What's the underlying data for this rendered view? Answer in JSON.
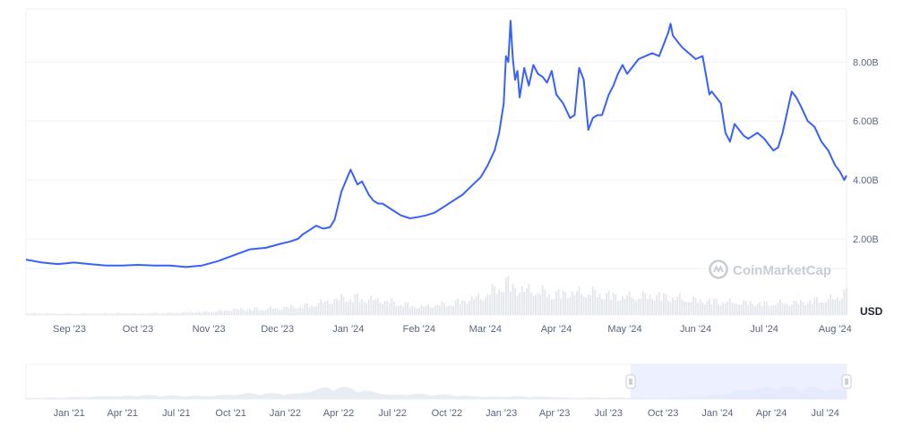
{
  "colors": {
    "line": "#3861fb",
    "grid": "#eff2f5",
    "volume": "#e3e6eb",
    "navigator_fill": "#e8ecf3",
    "navigator_selection": "#e6ebff",
    "watermark": "#c9ced6"
  },
  "watermark": {
    "text": "CoinMarketCap",
    "icon": "coinmarketcap-logo-icon"
  },
  "chart_data": {
    "type": "line",
    "title": "",
    "ylabel": "USD",
    "y_unit": "USD",
    "ylim": [
      1.0,
      9.8
    ],
    "y_tick_values": [
      2,
      4,
      6,
      8
    ],
    "y_tick_labels": [
      "2.00B",
      "4.00B",
      "6.00B",
      "8.00B"
    ],
    "x_tick_labels": [
      "Sep '23",
      "Oct '23",
      "Nov '23",
      "Dec '23",
      "Jan '24",
      "Feb '24",
      "Mar '24",
      "Apr '24",
      "May '24",
      "Jun '24",
      "Jul '24",
      "Aug '24"
    ],
    "x_tick_dates": [
      "2023-09-01",
      "2023-10-01",
      "2023-11-01",
      "2023-12-01",
      "2024-01-01",
      "2024-02-01",
      "2024-03-01",
      "2024-04-01",
      "2024-05-01",
      "2024-06-01",
      "2024-07-01",
      "2024-08-01"
    ],
    "grid": true,
    "legend": "none",
    "series": [
      {
        "x": [
          "2023-08-13",
          "2023-08-20",
          "2023-08-27",
          "2023-09-03",
          "2023-09-10",
          "2023-09-17",
          "2023-09-24",
          "2023-10-01",
          "2023-10-08",
          "2023-10-15",
          "2023-10-22",
          "2023-10-29",
          "2023-11-05",
          "2023-11-12",
          "2023-11-19",
          "2023-11-26",
          "2023-12-03",
          "2023-12-06",
          "2023-12-10",
          "2023-12-12",
          "2023-12-15",
          "2023-12-18",
          "2023-12-21",
          "2023-12-24",
          "2023-12-26",
          "2023-12-29",
          "2024-01-02",
          "2024-01-05",
          "2024-01-07",
          "2024-01-10",
          "2024-01-12",
          "2024-01-14",
          "2024-01-16",
          "2024-01-20",
          "2024-01-24",
          "2024-01-28",
          "2024-02-01",
          "2024-02-04",
          "2024-02-08",
          "2024-02-12",
          "2024-02-16",
          "2024-02-20",
          "2024-02-24",
          "2024-02-28",
          "2024-03-02",
          "2024-03-05",
          "2024-03-07",
          "2024-03-09",
          "2024-03-10",
          "2024-03-11",
          "2024-03-12",
          "2024-03-13",
          "2024-03-14",
          "2024-03-15",
          "2024-03-16",
          "2024-03-18",
          "2024-03-20",
          "2024-03-22",
          "2024-03-24",
          "2024-03-26",
          "2024-03-28",
          "2024-03-30",
          "2024-04-01",
          "2024-04-04",
          "2024-04-07",
          "2024-04-09",
          "2024-04-11",
          "2024-04-13",
          "2024-04-15",
          "2024-04-17",
          "2024-04-19",
          "2024-04-21",
          "2024-04-24",
          "2024-04-26",
          "2024-04-28",
          "2024-04-30",
          "2024-05-02",
          "2024-05-04",
          "2024-05-07",
          "2024-05-10",
          "2024-05-13",
          "2024-05-16",
          "2024-05-18",
          "2024-05-20",
          "2024-05-21",
          "2024-05-22",
          "2024-05-24",
          "2024-05-26",
          "2024-05-29",
          "2024-06-01",
          "2024-06-04",
          "2024-06-07",
          "2024-06-08",
          "2024-06-10",
          "2024-06-12",
          "2024-06-14",
          "2024-06-16",
          "2024-06-18",
          "2024-06-20",
          "2024-06-22",
          "2024-06-24",
          "2024-06-26",
          "2024-06-28",
          "2024-07-01",
          "2024-07-03",
          "2024-07-05",
          "2024-07-07",
          "2024-07-09",
          "2024-07-11",
          "2024-07-13",
          "2024-07-15",
          "2024-07-17",
          "2024-07-20",
          "2024-07-23",
          "2024-07-26",
          "2024-07-29",
          "2024-08-01",
          "2024-08-03",
          "2024-08-05",
          "2024-08-06"
        ],
        "y": [
          1.3,
          1.2,
          1.15,
          1.2,
          1.15,
          1.1,
          1.1,
          1.12,
          1.1,
          1.1,
          1.05,
          1.1,
          1.25,
          1.45,
          1.65,
          1.7,
          1.85,
          1.9,
          2.0,
          2.15,
          2.3,
          2.45,
          2.35,
          2.4,
          2.65,
          3.6,
          4.35,
          3.85,
          3.95,
          3.5,
          3.3,
          3.2,
          3.2,
          3.0,
          2.8,
          2.7,
          2.75,
          2.8,
          2.9,
          3.1,
          3.3,
          3.5,
          3.8,
          4.1,
          4.5,
          5.0,
          5.6,
          6.6,
          8.2,
          8.0,
          9.4,
          8.1,
          7.4,
          7.7,
          6.8,
          7.8,
          7.2,
          7.9,
          7.6,
          7.5,
          7.3,
          7.7,
          6.9,
          6.6,
          6.1,
          6.2,
          7.8,
          7.4,
          5.7,
          6.1,
          6.2,
          6.2,
          6.9,
          7.2,
          7.6,
          7.9,
          7.6,
          7.8,
          8.1,
          8.2,
          8.3,
          8.2,
          8.6,
          9.0,
          9.3,
          8.9,
          8.7,
          8.5,
          8.3,
          8.1,
          8.2,
          6.9,
          7.0,
          6.8,
          6.6,
          5.6,
          5.3,
          5.9,
          5.7,
          5.5,
          5.4,
          5.5,
          5.6,
          5.4,
          5.2,
          5.0,
          5.1,
          5.6,
          6.3,
          7.0,
          6.8,
          6.5,
          6.0,
          5.8,
          5.3,
          5.0,
          4.5,
          4.3,
          4.0,
          4.15
        ]
      }
    ],
    "volume": {
      "note": "relative trading volume bars",
      "x": [
        "2023-08-15",
        "2023-09-01",
        "2023-09-15",
        "2023-10-01",
        "2023-10-15",
        "2023-11-01",
        "2023-11-15",
        "2023-12-01",
        "2023-12-15",
        "2024-01-01",
        "2024-01-15",
        "2024-02-01",
        "2024-02-15",
        "2024-03-01",
        "2024-03-10",
        "2024-03-15",
        "2024-04-01",
        "2024-04-15",
        "2024-05-01",
        "2024-05-15",
        "2024-06-01",
        "2024-06-15",
        "2024-07-01",
        "2024-07-15",
        "2024-08-01",
        "2024-08-06"
      ],
      "values": [
        0.05,
        0.04,
        0.05,
        0.05,
        0.06,
        0.1,
        0.18,
        0.2,
        0.3,
        0.55,
        0.45,
        0.25,
        0.35,
        0.6,
        1.0,
        0.8,
        0.65,
        0.7,
        0.55,
        0.6,
        0.45,
        0.4,
        0.35,
        0.38,
        0.5,
        0.75
      ]
    }
  }
}
